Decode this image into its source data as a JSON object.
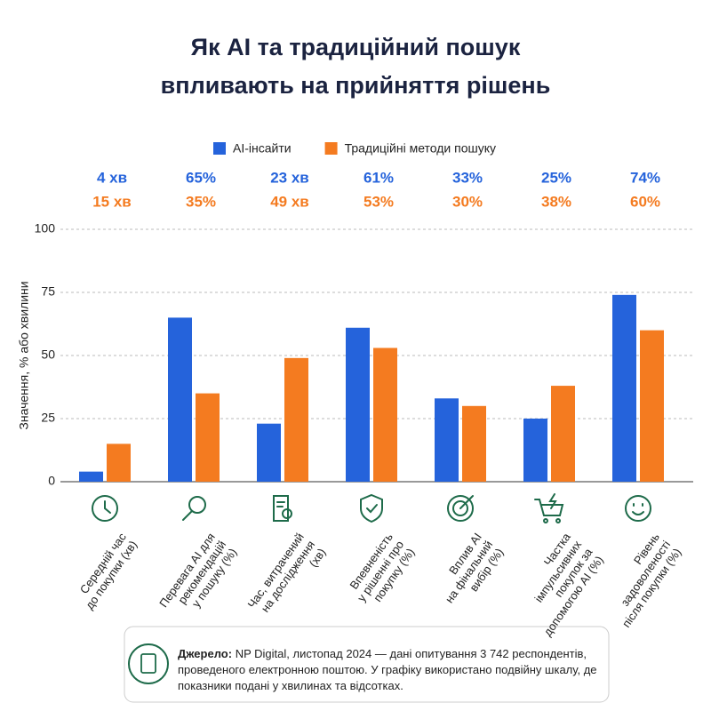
{
  "chart_data": {
    "type": "bar",
    "title": [
      "Як AI та традиційний пошук",
      "впливають на прийняття рішень"
    ],
    "ylabel": "Значення, % або хвилини",
    "categories": [
      [
        "Середній час",
        "до покупки (хв)"
      ],
      [
        "Перевага AI для",
        "рекомендацій",
        "у пошуку (%)"
      ],
      [
        "Час, витрачений",
        "на дослідження",
        "(хв)"
      ],
      [
        "Впевненість",
        "у рішенні про",
        "покупку (%)"
      ],
      [
        "Вплив AI",
        "на фінальний",
        "вибір (%)"
      ],
      [
        "Частка",
        "імпульсивних",
        "покупок за",
        "допомогою AI (%)"
      ],
      [
        "Рівень",
        "задоволеності",
        "після покупки (%)"
      ]
    ],
    "series": [
      {
        "name": "AI-інсайти",
        "color": "#2563db",
        "values": [
          4,
          65,
          23,
          61,
          33,
          25,
          74
        ],
        "value_labels": [
          "4 хв",
          "65%",
          "23 хв",
          "61%",
          "33%",
          "25%",
          "74%"
        ]
      },
      {
        "name": "Традиційні методи пошуку",
        "color": "#f47b20",
        "values": [
          15,
          35,
          49,
          53,
          30,
          38,
          60
        ],
        "value_labels": [
          "15 хв",
          "35%",
          "49 хв",
          "53%",
          "30%",
          "38%",
          "60%"
        ]
      }
    ],
    "ylim": [
      0,
      100
    ],
    "yticks": [
      0,
      25,
      50,
      75,
      100
    ],
    "grid": true,
    "source": {
      "label": "Джерело:",
      "text": "NP Digital, листопад 2024 — дані опитування 3 742 респондентів, проведеного електронною поштою. У графіку використано подвійну шкалу, де показники подані у хвилинах та відсотках."
    }
  }
}
